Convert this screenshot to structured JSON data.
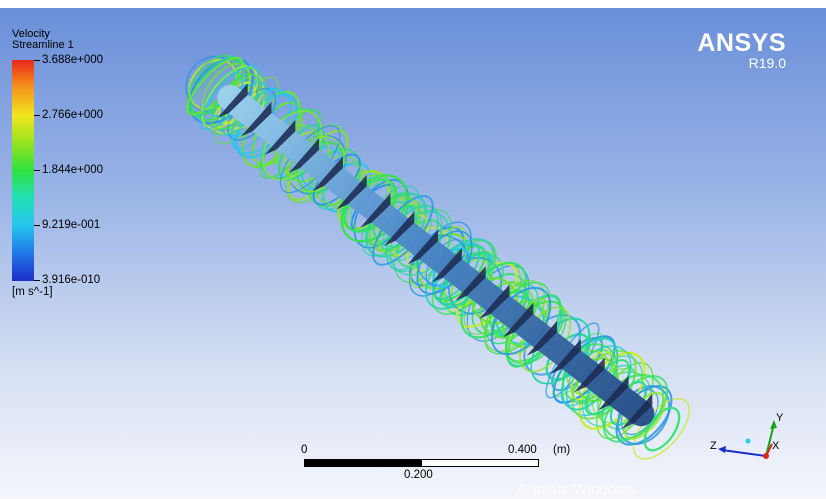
{
  "legend": {
    "variable": "Velocity",
    "object": "Streamline 1",
    "ticks": [
      "3.688e+000",
      "2.766e+000",
      "1.844e+000",
      "9.219e-001",
      "3.916e-010"
    ],
    "units": "[m s^-1]"
  },
  "brand": {
    "name": "ANSYS",
    "version": "R19.0"
  },
  "scale": {
    "start": "0",
    "end": "0.400",
    "unit": "(m)",
    "mid": "0.200"
  },
  "triad": {
    "x": "X",
    "y": "Y",
    "z": "Z"
  },
  "watermark": "Activate Windows",
  "icons": [
    "streamline-render",
    "axis-triad-icon"
  ],
  "colors": {
    "background_top": "#6a8fd9",
    "background_bottom": "#f4f6fb",
    "shaft": "#4a86c9",
    "blade": "#1d2b52",
    "brand_text": "#ffffff"
  }
}
